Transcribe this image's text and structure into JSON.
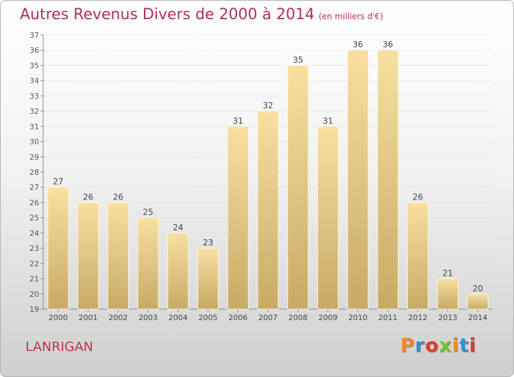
{
  "header": {
    "title": "Autres Revenus Divers de 2000 à 2014",
    "subtitle": "(en milliers d'€)"
  },
  "footer": {
    "place": "LANRIGAN",
    "logo": "Proxiti"
  },
  "colors": {
    "title": "#b0305a",
    "bar_top": "#f8e0a0",
    "bar_bottom": "#c8aa66",
    "logo_letters": [
      "#f28a1e",
      "#3a8fd6",
      "#e8352a",
      "#7cbf2b",
      "#f28a1e",
      "#3a8fd6",
      "#e8352a"
    ]
  },
  "chart_data": {
    "type": "bar",
    "categories": [
      "2000",
      "2001",
      "2002",
      "2003",
      "2004",
      "2005",
      "2006",
      "2007",
      "2008",
      "2009",
      "2010",
      "2011",
      "2012",
      "2013",
      "2014"
    ],
    "values": [
      27,
      26,
      26,
      25,
      24,
      23,
      31,
      32,
      35,
      31,
      36,
      36,
      26,
      21,
      20
    ],
    "title": "Autres Revenus Divers de 2000 à 2014",
    "ylim": [
      19,
      37
    ],
    "yticks": [
      19,
      20,
      21,
      22,
      23,
      24,
      25,
      26,
      27,
      28,
      29,
      30,
      31,
      32,
      33,
      34,
      35,
      36,
      37
    ],
    "grid": true,
    "data_labels": true
  }
}
